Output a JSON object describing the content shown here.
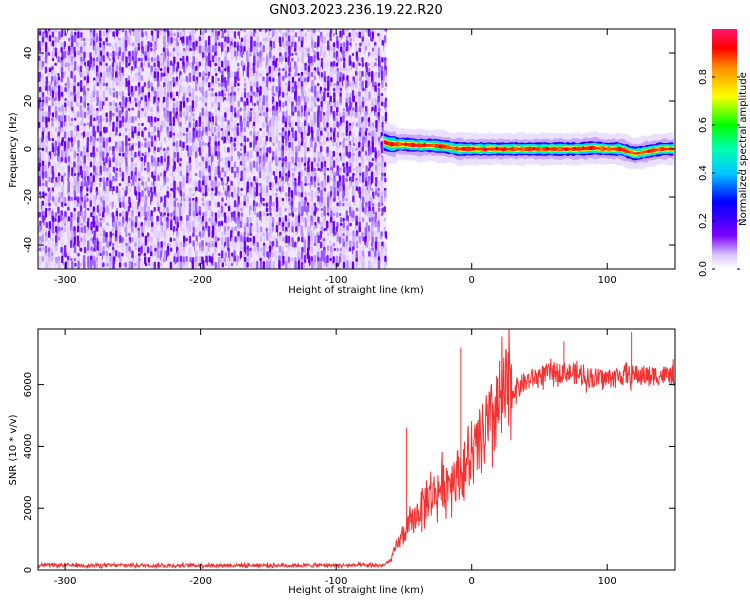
{
  "title": "GN03.2023.236.19.22.R20",
  "chart_data": [
    {
      "type": "heatmap",
      "xlabel": "Height of straight line (km)",
      "ylabel": "Frequency (Hz)",
      "xlim": [
        -320,
        150
      ],
      "ylim": [
        -50,
        50
      ],
      "xticks": [
        -300,
        -200,
        -100,
        0,
        100
      ],
      "yticks": [
        -40,
        -20,
        0,
        20,
        40
      ],
      "noise_region_x": [
        -320,
        -65
      ],
      "signal_band": {
        "x": [
          -65,
          -60,
          -50,
          -40,
          -30,
          -20,
          -10,
          0,
          10,
          20,
          30,
          40,
          50,
          60,
          70,
          80,
          90,
          100,
          110,
          120,
          130,
          140,
          150
        ],
        "frequency": [
          3,
          2,
          2,
          1.5,
          1.5,
          1,
          0,
          0,
          0,
          0,
          0,
          0,
          0,
          0,
          0,
          0,
          0.5,
          0,
          0,
          -2,
          -1,
          0,
          0
        ]
      },
      "colorbar": {
        "label": "Normalized spectral amplitude",
        "range": [
          0,
          1
        ],
        "ticks": [
          "0.0",
          "0.2",
          "0.4",
          "0.6",
          "0.8"
        ]
      }
    },
    {
      "type": "line",
      "xlabel": "Height of straight line (km)",
      "ylabel": "SNR (10 * v/v)",
      "xlim": [
        -320,
        150
      ],
      "ylim": [
        0,
        7800
      ],
      "xticks": [
        -300,
        -200,
        -100,
        0,
        100
      ],
      "yticks": [
        0,
        2000,
        4000,
        6000
      ],
      "color": "#f03232",
      "series": [
        {
          "x": [
            -320,
            -200,
            -100,
            -65,
            -60,
            -55,
            -50,
            -45,
            -40,
            -35,
            -30,
            -25,
            -20,
            -15,
            -10,
            -5,
            0,
            5,
            10,
            15,
            20,
            25,
            30,
            40,
            50,
            60,
            70,
            80,
            90,
            100,
            110,
            120,
            130,
            140,
            150
          ],
          "values": [
            150,
            150,
            150,
            150,
            300,
            800,
            1200,
            1500,
            1800,
            2200,
            2400,
            2600,
            2800,
            3000,
            3100,
            3300,
            3600,
            4000,
            4400,
            4800,
            5300,
            5600,
            5800,
            6100,
            6300,
            6400,
            6400,
            6300,
            6200,
            6200,
            6300,
            6300,
            6300,
            6300,
            6300
          ]
        }
      ],
      "spikes": [
        {
          "x": -8,
          "value": 7200
        },
        {
          "x": -48,
          "value": 4600
        },
        {
          "x": 118,
          "value": 7700
        },
        {
          "x": 68,
          "value": 7400
        }
      ]
    }
  ]
}
